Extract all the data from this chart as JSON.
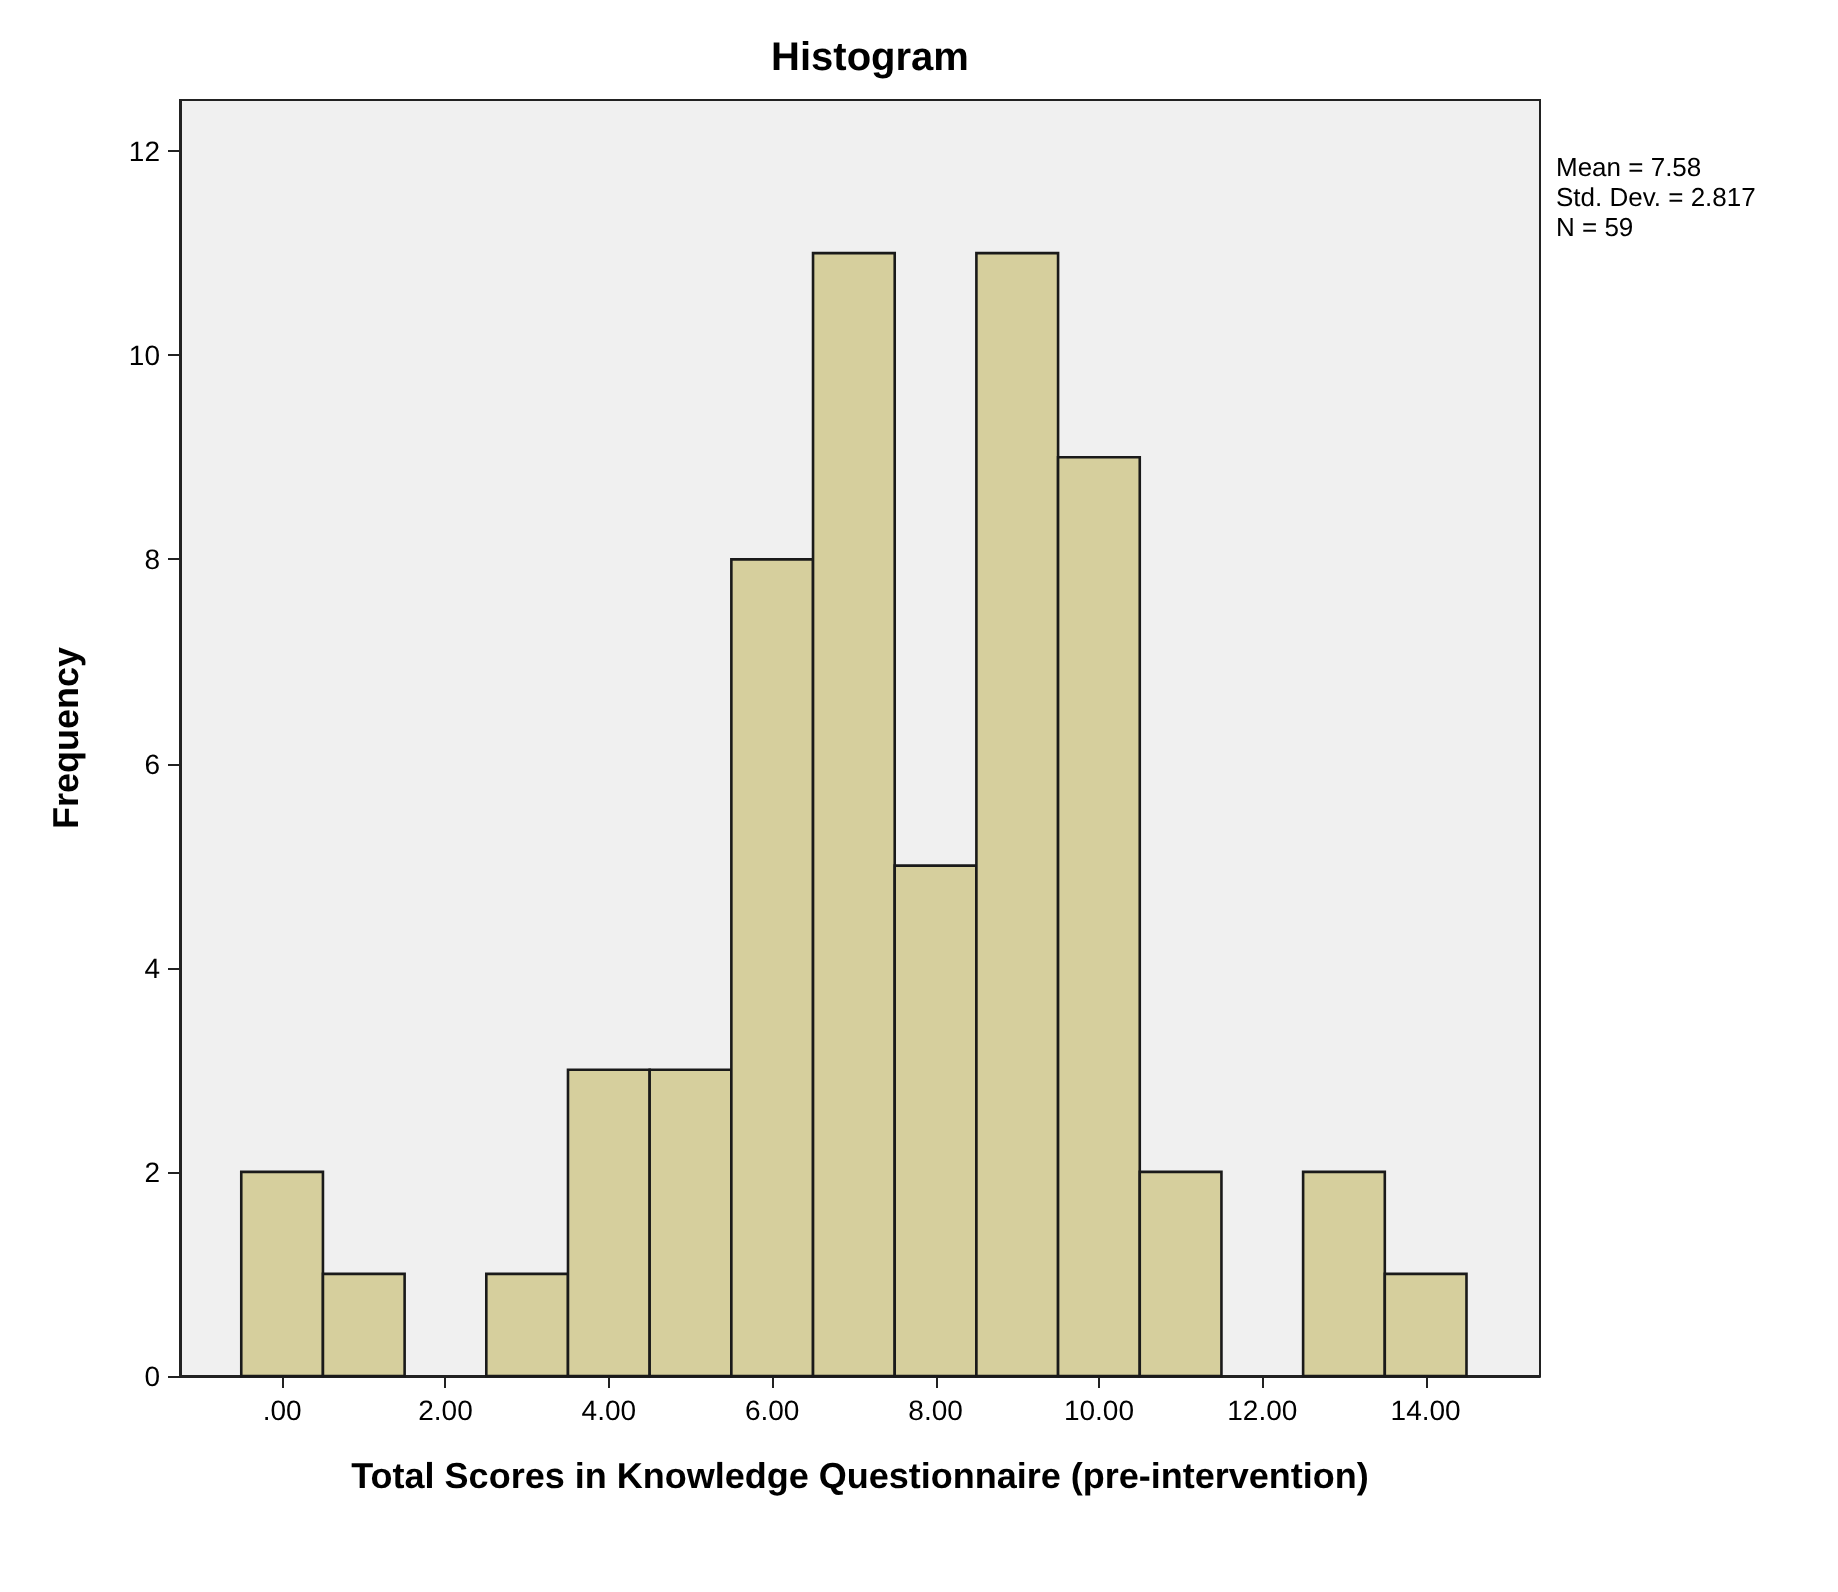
{
  "chart_data": {
    "type": "histogram",
    "title": "Histogram",
    "xlabel": "Total Scores in Knowledge Questionnaire (pre-intervention)",
    "ylabel": "Frequency",
    "bins": [
      -0.5,
      0.5,
      1.5,
      2.5,
      3.5,
      4.5,
      5.5,
      6.5,
      7.5,
      8.5,
      9.5,
      10.5,
      11.5,
      12.5,
      13.5,
      14.5
    ],
    "values": [
      2,
      1,
      0,
      1,
      3,
      3,
      8,
      11,
      5,
      11,
      9,
      2,
      0,
      2,
      1
    ],
    "color": "#d6cf9d",
    "xlim": [
      -1.25,
      15.4
    ],
    "xticks": [
      {
        "value": 0,
        "label": ".00"
      },
      {
        "value": 2,
        "label": "2.00"
      },
      {
        "value": 4,
        "label": "4.00"
      },
      {
        "value": 6,
        "label": "6.00"
      },
      {
        "value": 8,
        "label": "8.00"
      },
      {
        "value": 10,
        "label": "10.00"
      },
      {
        "value": 12,
        "label": "12.00"
      },
      {
        "value": 14,
        "label": "14.00"
      }
    ],
    "ylim": [
      0,
      12.5
    ],
    "yticks": [
      0,
      2,
      4,
      6,
      8,
      10,
      12
    ],
    "annotations": [
      "Mean = 7.58",
      "Std. Dev. = 2.817",
      "N = 59"
    ]
  }
}
